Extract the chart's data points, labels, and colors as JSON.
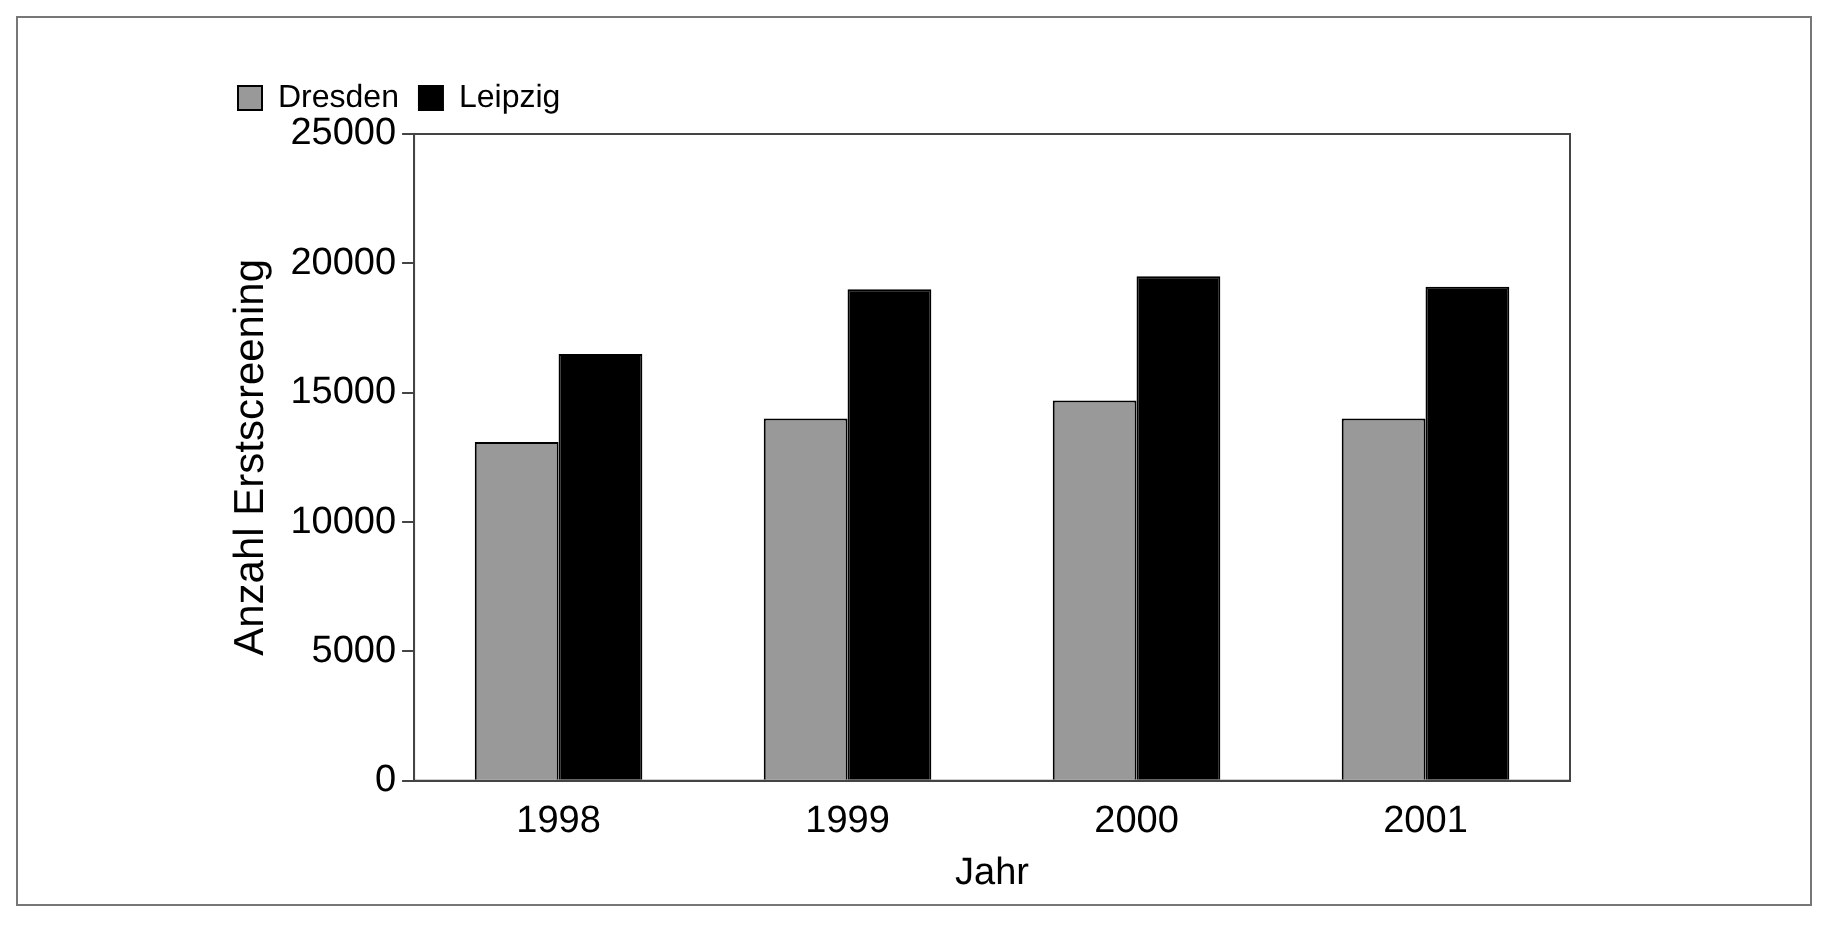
{
  "chart_data": {
    "type": "bar",
    "categories": [
      "1998",
      "1999",
      "2000",
      "2001"
    ],
    "series": [
      {
        "name": "Dresden",
        "color": "#999999",
        "values": [
          13100,
          14000,
          14700,
          14000
        ]
      },
      {
        "name": "Leipzig",
        "color": "#000000",
        "values": [
          16500,
          19000,
          19500,
          19100
        ]
      }
    ],
    "xlabel": "Jahr",
    "ylabel": "Anzahl Erstscreening",
    "ylim": [
      0,
      25000
    ],
    "yticks": [
      0,
      5000,
      10000,
      15000,
      20000,
      25000
    ],
    "grid": false,
    "legend": "top left"
  }
}
